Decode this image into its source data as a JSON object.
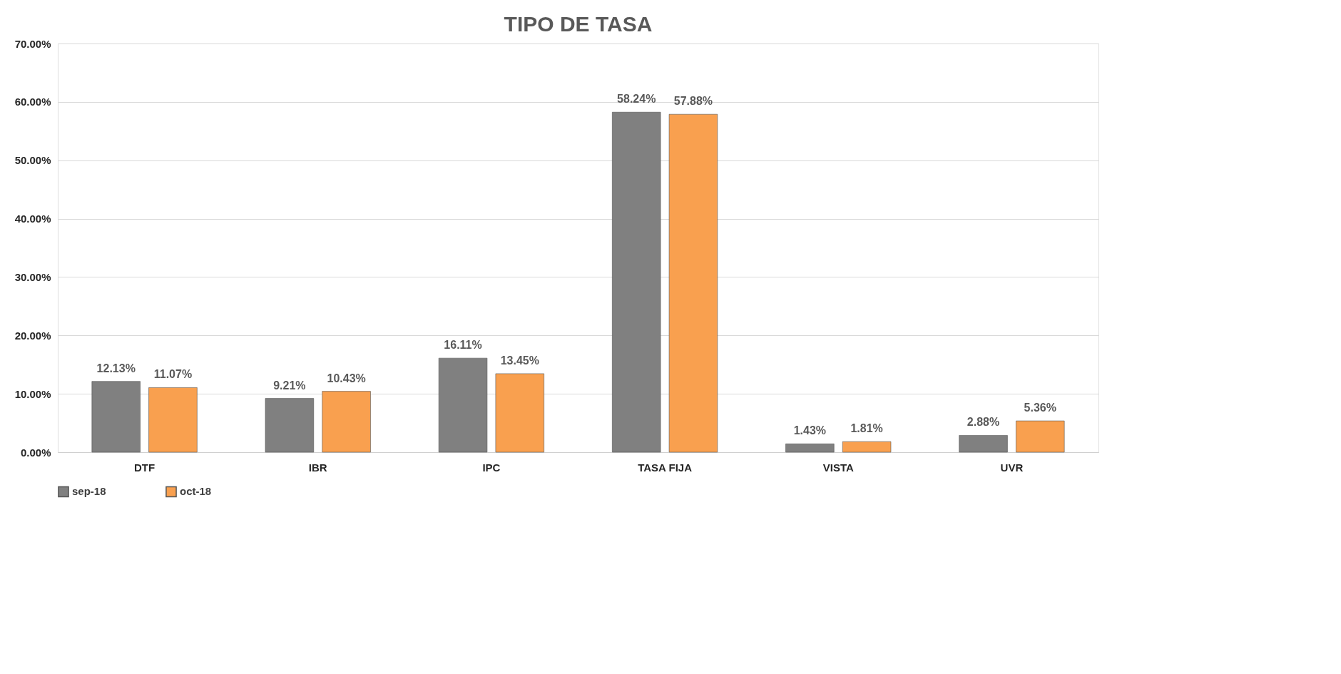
{
  "chart_data": {
    "type": "bar",
    "title": "TIPO DE TASA",
    "categories": [
      "DTF",
      "IBR",
      "IPC",
      "TASA FIJA",
      "VISTA",
      "UVR"
    ],
    "series": [
      {
        "name": "sep-18",
        "color": "#808080",
        "values": [
          12.13,
          9.21,
          16.11,
          58.24,
          1.43,
          2.88
        ],
        "value_labels": [
          "12.13%",
          "9.21%",
          "16.11%",
          "58.24%",
          "1.43%",
          "2.88%"
        ]
      },
      {
        "name": "oct-18",
        "color": "#f9a04f",
        "values": [
          11.07,
          10.43,
          13.45,
          57.88,
          1.81,
          5.36
        ],
        "value_labels": [
          "11.07%",
          "10.43%",
          "13.45%",
          "57.88%",
          "1.81%",
          "5.36%"
        ]
      }
    ],
    "ylim": [
      0,
      70
    ],
    "yticks": [
      {
        "value": 0,
        "label": "0.00%"
      },
      {
        "value": 10,
        "label": "10.00%"
      },
      {
        "value": 20,
        "label": "20.00%"
      },
      {
        "value": 30,
        "label": "30.00%"
      },
      {
        "value": 40,
        "label": "40.00%"
      },
      {
        "value": 50,
        "label": "50.00%"
      },
      {
        "value": 60,
        "label": "60.00%"
      },
      {
        "value": 70,
        "label": "70.00%"
      }
    ],
    "grid": "y",
    "legend": "bottom"
  }
}
